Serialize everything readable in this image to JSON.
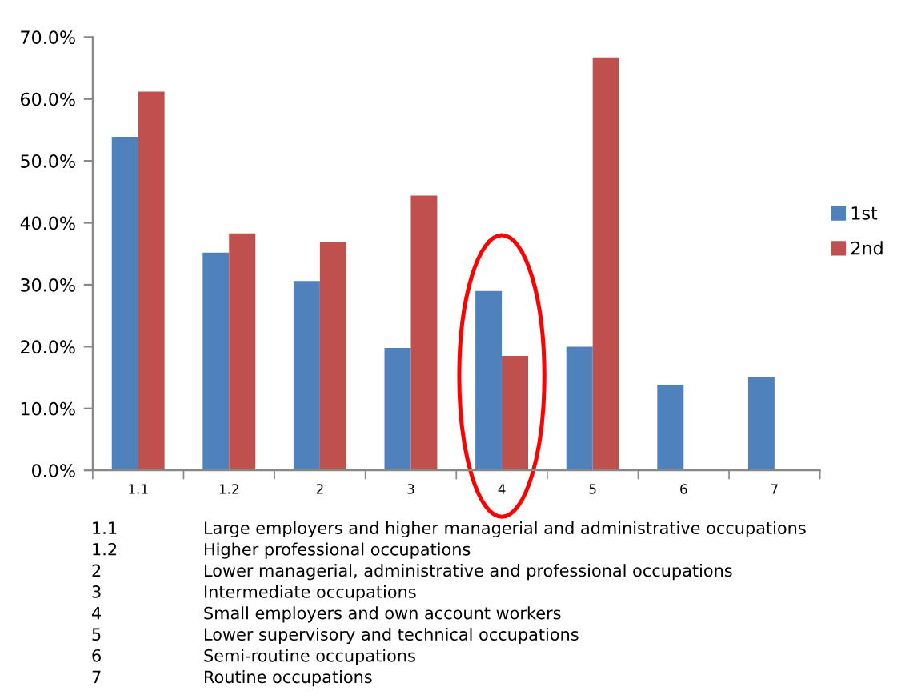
{
  "chart_data": {
    "type": "bar",
    "categories": [
      "1.1",
      "1.2",
      "2",
      "3",
      "4",
      "5",
      "6",
      "7"
    ],
    "series": [
      {
        "name": "1st",
        "color": "#4f81bd",
        "values": [
          53.9,
          35.2,
          30.6,
          19.8,
          29.0,
          20.0,
          13.8,
          15.0
        ]
      },
      {
        "name": "2nd",
        "color": "#c0504d",
        "values": [
          61.2,
          38.3,
          36.9,
          44.4,
          18.5,
          66.7,
          null,
          null
        ]
      }
    ],
    "ylim": [
      0,
      70
    ],
    "yticks": [
      {
        "value": 0,
        "label": "0.0%"
      },
      {
        "value": 10,
        "label": "10.0%"
      },
      {
        "value": 20,
        "label": "20.0%"
      },
      {
        "value": 30,
        "label": "30.0%"
      },
      {
        "value": 40,
        "label": "40.0%"
      },
      {
        "value": 50,
        "label": "50.0%"
      },
      {
        "value": 60,
        "label": "60.0%"
      },
      {
        "value": 70,
        "label": "70.0%"
      }
    ],
    "grid": false,
    "legend": "right",
    "annotations": [
      "1.1 Large employers and higher managerial and administrative occupations",
      "1.2 Higher professional occupations",
      "2 Lower managerial, administrative and professional occupations",
      "3 Intermediate occupations",
      "4 Small employers and own account workers",
      "5 Lower supervisory and technical occupations",
      "6 Semi-routine occupations",
      "7 Routine occupations"
    ]
  }
}
